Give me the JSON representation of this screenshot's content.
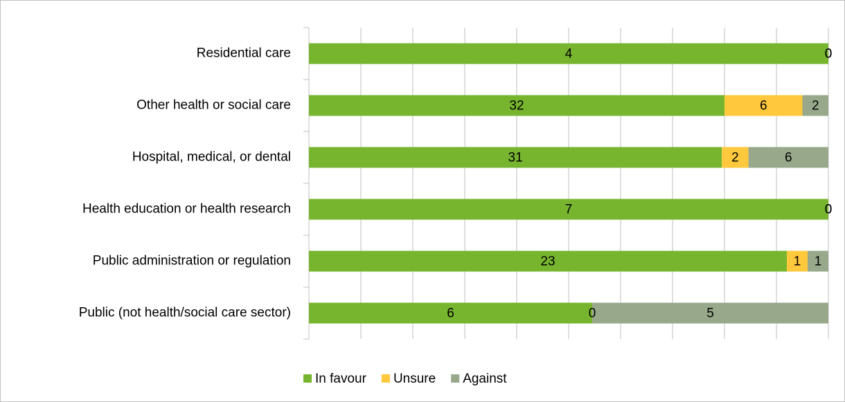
{
  "chart_data": {
    "type": "bar",
    "orientation": "horizontal",
    "stacked": "percent",
    "categories": [
      "Residential care",
      "Other health or social care",
      "Hospital, medical, or dental",
      "Health education or health research",
      "Public administration or regulation",
      "Public (not health/social care sector)"
    ],
    "series": [
      {
        "name": "In favour",
        "color": "#77b52f",
        "values": [
          4,
          32,
          31,
          7,
          23,
          6
        ]
      },
      {
        "name": "Unsure",
        "color": "#ffc83d",
        "values": [
          0,
          6,
          2,
          0,
          1,
          0
        ]
      },
      {
        "name": "Against",
        "color": "#98a98b",
        "values": [
          0,
          2,
          6,
          0,
          1,
          5
        ]
      }
    ],
    "xlim": [
      0,
      100
    ],
    "xticks": [
      0,
      10,
      20,
      30,
      40,
      50,
      60,
      70,
      80,
      90,
      100
    ],
    "grid": true,
    "legend": "bottom"
  }
}
